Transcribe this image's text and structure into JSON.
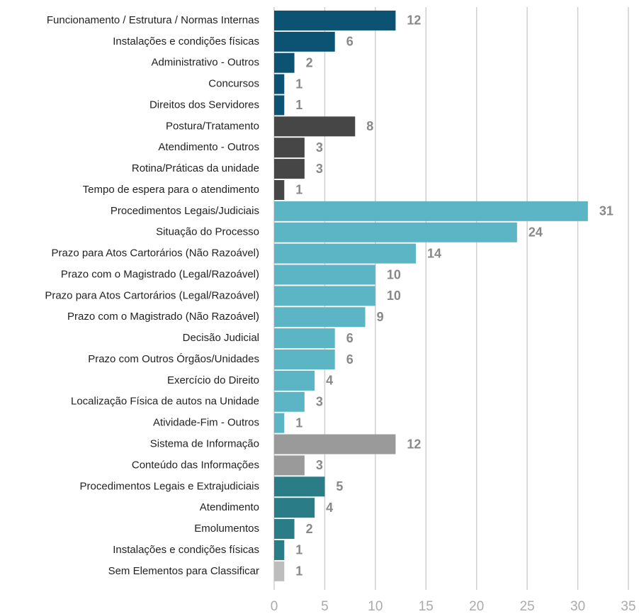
{
  "chart_data": {
    "type": "hbar",
    "categories": [
      "Funcionamento / Estrutura / Normas Internas",
      "Instalações e condições físicas",
      "Administrativo - Outros",
      "Concursos",
      "Direitos dos Servidores ",
      "Postura/Tratamento",
      "Atendimento - Outros",
      "Rotina/Práticas da unidade",
      "Tempo de espera para o atendimento",
      "Procedimentos Legais/Judiciais",
      "Situação do Processo",
      "Prazo para Atos Cartorários (Não Razoável)",
      "Prazo com o Magistrado (Legal/Razoável)",
      "Prazo para Atos Cartorários (Legal/Razoável)",
      "Prazo com o Magistrado (Não Razoável)",
      "Decisão Judicial",
      "Prazo com Outros Órgãos/Unidades",
      "Exercício do Direito",
      "Localização Física de autos na Unidade",
      "Atividade-Fim - Outros",
      "Sistema de Informação",
      "Conteúdo das Informações",
      "Procedimentos Legais e Extrajudiciais",
      "Atendimento",
      "Emolumentos",
      "Instalações e condições físicas",
      "Sem Elementos para Classificar"
    ],
    "values": [
      12,
      6,
      2,
      1,
      1,
      8,
      3,
      3,
      1,
      31,
      24,
      14,
      10,
      10,
      9,
      6,
      6,
      4,
      3,
      1,
      12,
      3,
      5,
      4,
      2,
      1,
      1
    ],
    "colors": [
      "#0b5273",
      "#0b5273",
      "#0b5273",
      "#0b5273",
      "#0b5273",
      "#464646",
      "#464646",
      "#464646",
      "#464646",
      "#5bb5c5",
      "#5bb5c5",
      "#5bb5c5",
      "#5bb5c5",
      "#5bb5c5",
      "#5bb5c5",
      "#5bb5c5",
      "#5bb5c5",
      "#5bb5c5",
      "#5bb5c5",
      "#5bb5c5",
      "#9a9a9a",
      "#9a9a9a",
      "#2a7d86",
      "#2a7d86",
      "#2a7d86",
      "#2a7d86",
      "#bdbdbd"
    ],
    "xlim": [
      0,
      35
    ],
    "xticks": [
      0,
      5,
      10,
      15,
      20,
      25,
      30,
      35
    ],
    "grid": true
  }
}
